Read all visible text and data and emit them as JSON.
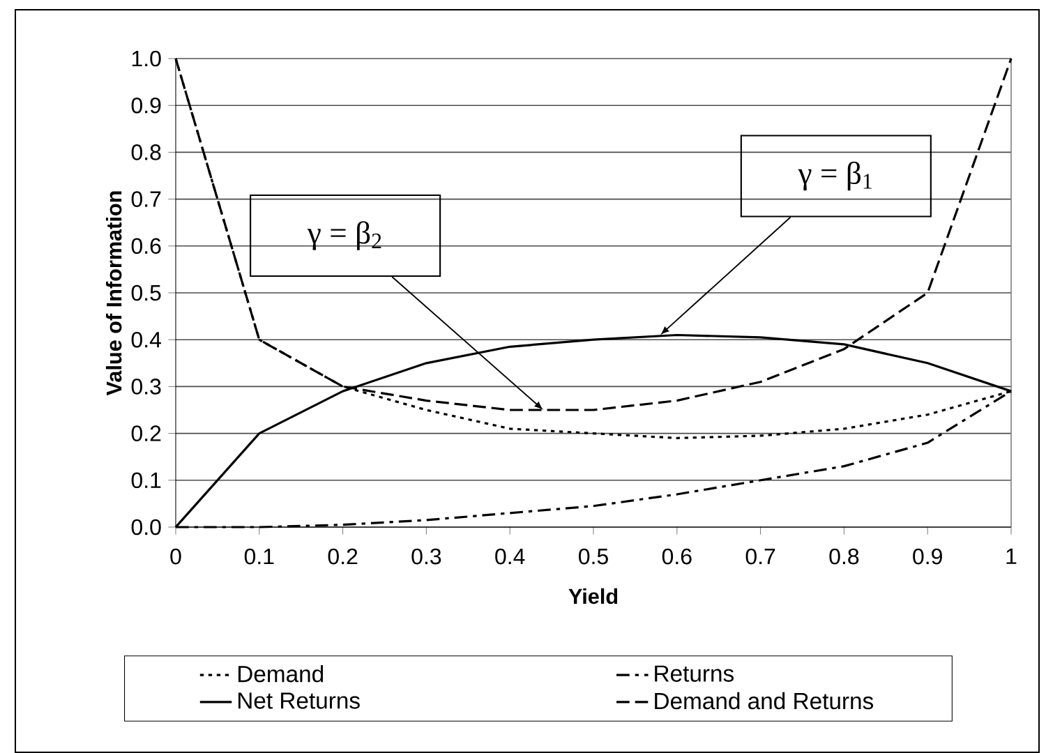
{
  "chart_data": {
    "type": "line",
    "xlabel": "Yield",
    "ylabel": "Value of Information",
    "xlim": [
      0,
      1
    ],
    "ylim": [
      0,
      1
    ],
    "xticks": [
      0,
      0.1,
      0.2,
      0.3,
      0.4,
      0.5,
      0.6,
      0.7,
      0.8,
      0.9,
      1
    ],
    "yticks": [
      {
        "value": 0,
        "label": "0.0"
      },
      {
        "value": 0.1,
        "label": "0.1"
      },
      {
        "value": 0.2,
        "label": "0.2"
      },
      {
        "value": 0.3,
        "label": "0.3"
      },
      {
        "value": 0.4,
        "label": "0.4"
      },
      {
        "value": 0.5,
        "label": "0.5"
      },
      {
        "value": 0.6,
        "label": "0.6"
      },
      {
        "value": 0.7,
        "label": "0.7"
      },
      {
        "value": 0.8,
        "label": "0.8"
      },
      {
        "value": 0.9,
        "label": "0.9"
      },
      {
        "value": 1,
        "label": "1.0"
      }
    ],
    "x": [
      0,
      0.1,
      0.2,
      0.3,
      0.4,
      0.5,
      0.6,
      0.7,
      0.8,
      0.9,
      1
    ],
    "grid": "y",
    "legend": "bottom",
    "marker": "none",
    "series": [
      {
        "name": "Demand",
        "color": "#000000",
        "line_style": "dotted",
        "values": [
          1.0,
          0.4,
          0.3,
          0.25,
          0.21,
          0.2,
          0.19,
          0.195,
          0.21,
          0.24,
          0.29
        ]
      },
      {
        "name": "Returns",
        "color": "#000000",
        "line_style": "dashdot",
        "values": [
          0,
          0,
          0.005,
          0.015,
          0.03,
          0.045,
          0.07,
          0.1,
          0.13,
          0.18,
          0.29
        ]
      },
      {
        "name": "Net Returns",
        "color": "#000000",
        "line_style": "solid",
        "values": [
          0,
          0.2,
          0.29,
          0.35,
          0.385,
          0.4,
          0.41,
          0.405,
          0.39,
          0.35,
          0.29
        ]
      },
      {
        "name": "Demand and Returns",
        "color": "#000000",
        "line_style": "dashed",
        "values": [
          1.0,
          0.4,
          0.3,
          0.27,
          0.25,
          0.25,
          0.27,
          0.31,
          0.38,
          0.5,
          1.0
        ]
      }
    ],
    "annotations": [
      {
        "text": "γ = β$_{2}$",
        "x": 0.44,
        "y": 0.25
      },
      {
        "text": "γ = β$_{1}$",
        "x": 0.58,
        "y": 0.41
      }
    ]
  }
}
